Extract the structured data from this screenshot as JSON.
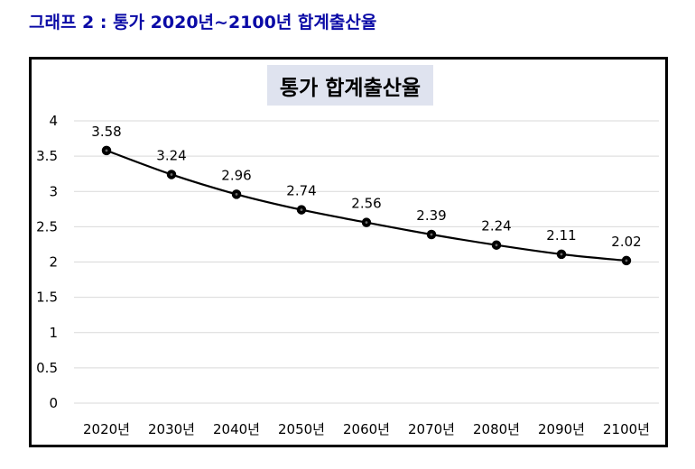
{
  "caption": "그래프 2 : 통가 2020년~2100년 합계출산율",
  "chart_data": {
    "type": "line",
    "title": "통가 합계출산율",
    "categories": [
      "2020년",
      "2030년",
      "2040년",
      "2050년",
      "2060년",
      "2070년",
      "2080년",
      "2090년",
      "2100년"
    ],
    "values": [
      3.58,
      3.24,
      2.96,
      2.74,
      2.56,
      2.39,
      2.24,
      2.11,
      2.02
    ],
    "data_labels": [
      "3.58",
      "3.24",
      "2.96",
      "2.74",
      "2.56",
      "2.39",
      "2.24",
      "2.11",
      "2.02"
    ],
    "yticks": [
      "0",
      "0.5",
      "1",
      "1.5",
      "2",
      "2.5",
      "3",
      "3.5",
      "4"
    ],
    "ylim": [
      0,
      4
    ],
    "xlabel": "",
    "ylabel": "",
    "grid": true,
    "legend": "none",
    "colors": {
      "line": "#000000",
      "grid": "#d9d9d9",
      "title_bg": "#dfe3ef",
      "caption": "#0a0aa6"
    }
  }
}
